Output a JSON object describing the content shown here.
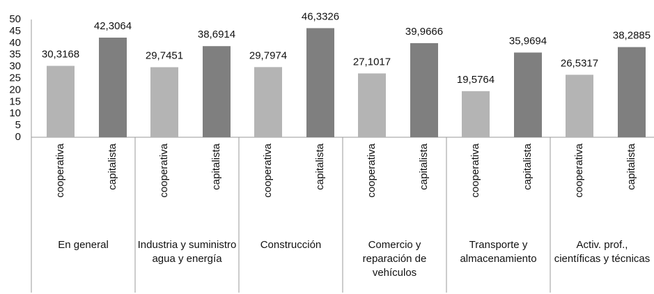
{
  "chart_data": {
    "type": "bar",
    "groups": [
      "En general",
      "Industria y suministro agua y energía",
      "Construcción",
      "Comercio y reparación de vehículos",
      "Transporte y almacenamiento",
      "Activ. prof., científicas y técnicas"
    ],
    "categories": [
      "cooperativa",
      "capitalista",
      "cooperativa",
      "capitalista",
      "cooperativa",
      "capitalista",
      "cooperativa",
      "capitalista",
      "cooperativa",
      "capitalista",
      "cooperativa",
      "capitalista"
    ],
    "values": [
      30.3168,
      42.3064,
      29.7451,
      38.6914,
      29.7974,
      46.3326,
      27.1017,
      39.9666,
      19.5764,
      35.9694,
      26.5317,
      38.2885
    ],
    "value_labels": [
      "30,3168",
      "42,3064",
      "29,7451",
      "38,6914",
      "29,7974",
      "46,3326",
      "27,1017",
      "39,9666",
      "19,5764",
      "35,9694",
      "26,5317",
      "38,2885"
    ],
    "colors": [
      "#b4b4b4",
      "#7f7f7f"
    ],
    "ylim": [
      0,
      50
    ],
    "yticks": [
      0,
      5,
      10,
      15,
      20,
      25,
      30,
      35,
      40,
      45,
      50
    ],
    "grid": false
  }
}
